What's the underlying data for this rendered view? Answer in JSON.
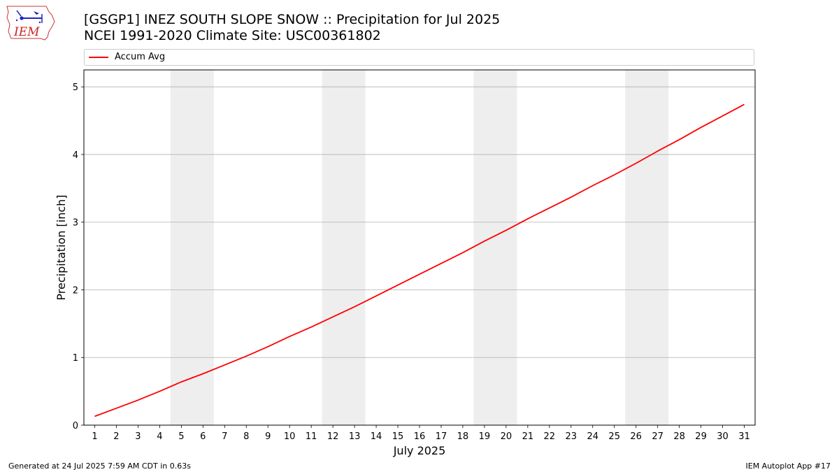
{
  "header": {
    "logo_text": "IEM",
    "title_line1": "[GSGP1] INEZ SOUTH SLOPE SNOW :: Precipitation for Jul 2025",
    "title_line2": "NCEI 1991-2020 Climate Site: USC00361802"
  },
  "footer": {
    "left": "Generated at 24 Jul 2025 7:59 AM CDT in 0.63s",
    "right": "IEM Autoplot App #17"
  },
  "colors": {
    "line": "#ff0000",
    "weekend_band": "#eeeeee",
    "grid": "#b0b0b0"
  },
  "chart_data": {
    "type": "line",
    "xlabel": "July 2025",
    "ylabel": "Precipitation [inch]",
    "xlim": [
      0.5,
      31.5
    ],
    "ylim": [
      0,
      5.25
    ],
    "x_ticks": [
      1,
      2,
      3,
      4,
      5,
      6,
      7,
      8,
      9,
      10,
      11,
      12,
      13,
      14,
      15,
      16,
      17,
      18,
      19,
      20,
      21,
      22,
      23,
      24,
      25,
      26,
      27,
      28,
      29,
      30,
      31
    ],
    "y_ticks": [
      0,
      1,
      2,
      3,
      4,
      5
    ],
    "grid": "horizontal",
    "legend_position": "top",
    "weekend_bands": [
      [
        5,
        6
      ],
      [
        12,
        13
      ],
      [
        19,
        20
      ],
      [
        26,
        27
      ]
    ],
    "series": [
      {
        "name": "Accum Avg",
        "x": [
          1,
          2,
          3,
          4,
          5,
          6,
          7,
          8,
          9,
          10,
          11,
          12,
          13,
          14,
          15,
          16,
          17,
          18,
          19,
          20,
          21,
          22,
          23,
          24,
          25,
          26,
          27,
          28,
          29,
          30,
          31
        ],
        "values": [
          0.13,
          0.25,
          0.37,
          0.5,
          0.64,
          0.76,
          0.89,
          1.02,
          1.16,
          1.31,
          1.45,
          1.6,
          1.75,
          1.91,
          2.07,
          2.23,
          2.39,
          2.55,
          2.72,
          2.88,
          3.05,
          3.21,
          3.37,
          3.54,
          3.7,
          3.87,
          4.05,
          4.22,
          4.4,
          4.57,
          4.74
        ]
      }
    ]
  }
}
